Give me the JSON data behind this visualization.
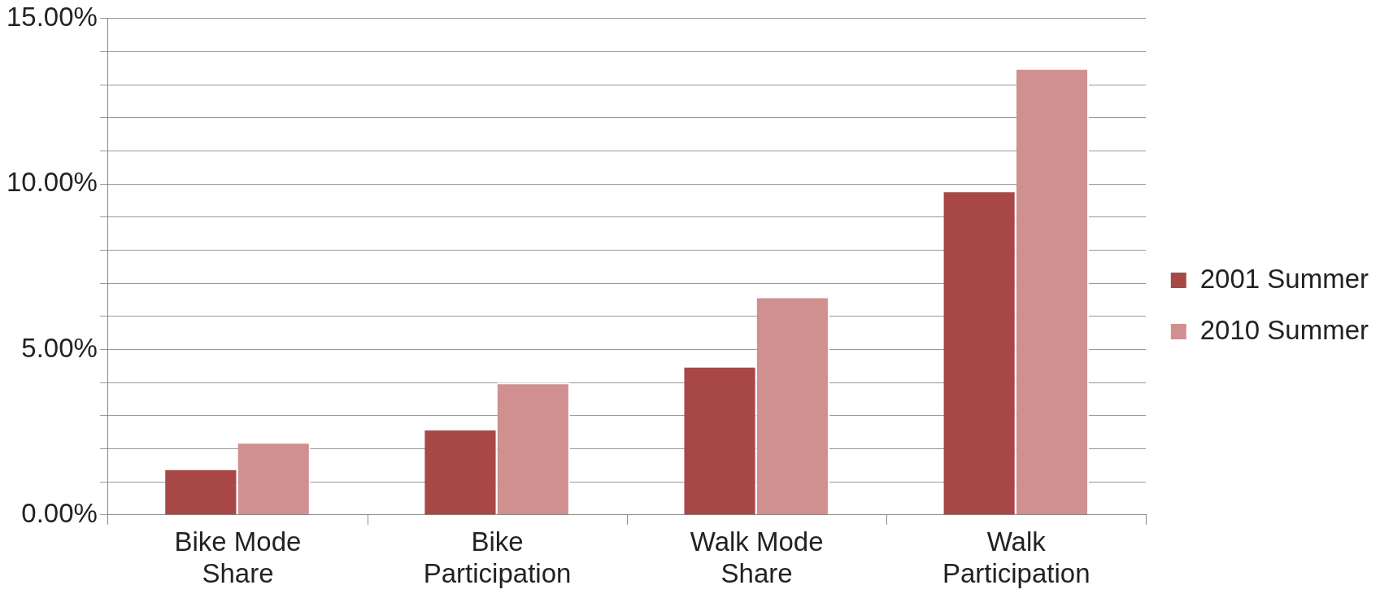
{
  "chart_data": {
    "type": "bar",
    "categories": [
      "Bike Mode Share",
      "Bike Participation",
      "Walk Mode Share",
      "Walk Participation"
    ],
    "series": [
      {
        "name": "2001 Summer",
        "color": "#a84846",
        "values": [
          1.4,
          2.6,
          4.5,
          9.8
        ]
      },
      {
        "name": "2010 Summer",
        "color": "#d09090",
        "values": [
          2.2,
          4.0,
          6.6,
          13.5
        ]
      }
    ],
    "ylim": [
      0,
      15
    ],
    "yticks": [
      {
        "value": 0,
        "label": "0.00%"
      },
      {
        "value": 1,
        "label": null
      },
      {
        "value": 2,
        "label": null
      },
      {
        "value": 3,
        "label": null
      },
      {
        "value": 4,
        "label": null
      },
      {
        "value": 5,
        "label": "5.00%"
      },
      {
        "value": 6,
        "label": null
      },
      {
        "value": 7,
        "label": null
      },
      {
        "value": 8,
        "label": null
      },
      {
        "value": 9,
        "label": null
      },
      {
        "value": 10,
        "label": "10.00%"
      },
      {
        "value": 11,
        "label": null
      },
      {
        "value": 12,
        "label": null
      },
      {
        "value": 13,
        "label": null
      },
      {
        "value": 14,
        "label": null
      },
      {
        "value": 15,
        "label": "15.00%"
      }
    ],
    "grid": "y",
    "legend": "right"
  }
}
